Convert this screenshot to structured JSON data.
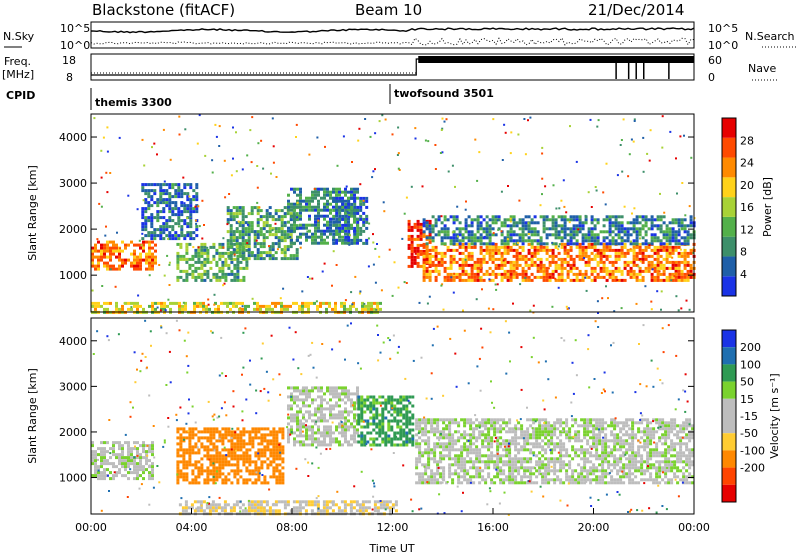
{
  "header": {
    "station": "Blackstone (fitACF)",
    "beam": "Beam 10",
    "date": "21/Dec/2014"
  },
  "top_panels": {
    "nsky_label": "N.Sky",
    "nsearch_label": "N.Search",
    "noise_ticks": [
      "10^5",
      "10^0"
    ],
    "freq_label": "Freq.",
    "freq_unit": "[MHz]",
    "freq_ticks": [
      "18",
      "8"
    ],
    "nave_label": "Nave",
    "nave_ticks": [
      "60",
      "0"
    ],
    "cpid_label": "CPID",
    "cpid_segments": [
      {
        "name": "themis 3300",
        "start_hour": 0.0
      },
      {
        "name": "twofsound 3501",
        "start_hour": 11.95
      }
    ]
  },
  "colors": {
    "power_scale": [
      "#1a33e6",
      "#1f5fa8",
      "#3d8f6a",
      "#53b04a",
      "#a8d236",
      "#ffd21a",
      "#ff8a00",
      "#ff4a00",
      "#e60000"
    ],
    "velocity_scale": [
      "#1a33e6",
      "#1f6fb0",
      "#2f9a53",
      "#7ad22e",
      "#bdbdbd",
      "#bdbdbd",
      "#ffcc33",
      "#ff8800",
      "#ff4400",
      "#e60000"
    ]
  },
  "chart_data": [
    {
      "type": "heatmap",
      "name": "power",
      "ylabel": "Slant Range [km]",
      "yticks": [
        1000,
        2000,
        3000,
        4000
      ],
      "ylim": [
        200,
        4500
      ],
      "xlim": [
        0,
        24
      ],
      "colorbar_label": "Power [dB]",
      "colorbar_ticks": [
        "4",
        "8",
        "12",
        "16",
        "20",
        "24",
        "28"
      ],
      "colorbar_range": [
        0,
        32
      ],
      "features": [
        {
          "start": 0.0,
          "end": 2.6,
          "range_start": 1100,
          "range_end": 1750,
          "value": 24
        },
        {
          "start": 2.0,
          "end": 4.2,
          "range_start": 1800,
          "range_end": 3000,
          "value": 6
        },
        {
          "start": 3.4,
          "end": 6.2,
          "range_start": 900,
          "range_end": 1700,
          "value": 12
        },
        {
          "start": 5.4,
          "end": 8.2,
          "range_start": 1350,
          "range_end": 2500,
          "value": 10
        },
        {
          "start": 7.8,
          "end": 10.6,
          "range_start": 1700,
          "range_end": 2900,
          "value": 8
        },
        {
          "start": 9.6,
          "end": 11.0,
          "range_start": 1700,
          "range_end": 2700,
          "value": 6
        },
        {
          "start": 12.6,
          "end": 13.5,
          "range_start": 1200,
          "range_end": 2200,
          "value": 28
        },
        {
          "start": 13.2,
          "end": 24.0,
          "range_start": 900,
          "range_end": 1700,
          "value": 24
        },
        {
          "start": 13.2,
          "end": 24.0,
          "range_start": 1700,
          "range_end": 2300,
          "value": 8
        },
        {
          "start": 0.0,
          "end": 11.5,
          "range_start": 200,
          "range_end": 420,
          "value": 18
        }
      ]
    },
    {
      "type": "heatmap",
      "name": "velocity",
      "ylabel": "Slant Range [km]",
      "xlabel": "Time UT",
      "yticks": [
        1000,
        2000,
        3000,
        4000
      ],
      "ylim": [
        200,
        4500
      ],
      "xlim": [
        0,
        24
      ],
      "xticks": [
        "00:00",
        "04:00",
        "08:00",
        "12:00",
        "16:00",
        "20:00",
        "00:00"
      ],
      "colorbar_label": "Velocity [m s⁻¹]",
      "colorbar_ticks": [
        "200",
        "100",
        "50",
        "15",
        "-15",
        "-50",
        "-100",
        "-200"
      ],
      "features": [
        {
          "start": 0.0,
          "end": 2.5,
          "range_start": 1000,
          "range_end": 1800,
          "value": 0
        },
        {
          "start": 3.4,
          "end": 7.6,
          "range_start": 900,
          "range_end": 2100,
          "value": -140
        },
        {
          "start": 7.8,
          "end": 10.6,
          "range_start": 1700,
          "range_end": 3000,
          "value": 0
        },
        {
          "start": 10.6,
          "end": 12.8,
          "range_start": 1700,
          "range_end": 2800,
          "value": 70
        },
        {
          "start": 12.9,
          "end": 24.0,
          "range_start": 900,
          "range_end": 2300,
          "value": 0
        },
        {
          "start": 3.5,
          "end": 12.2,
          "range_start": 200,
          "range_end": 500,
          "value": -40
        }
      ]
    }
  ]
}
